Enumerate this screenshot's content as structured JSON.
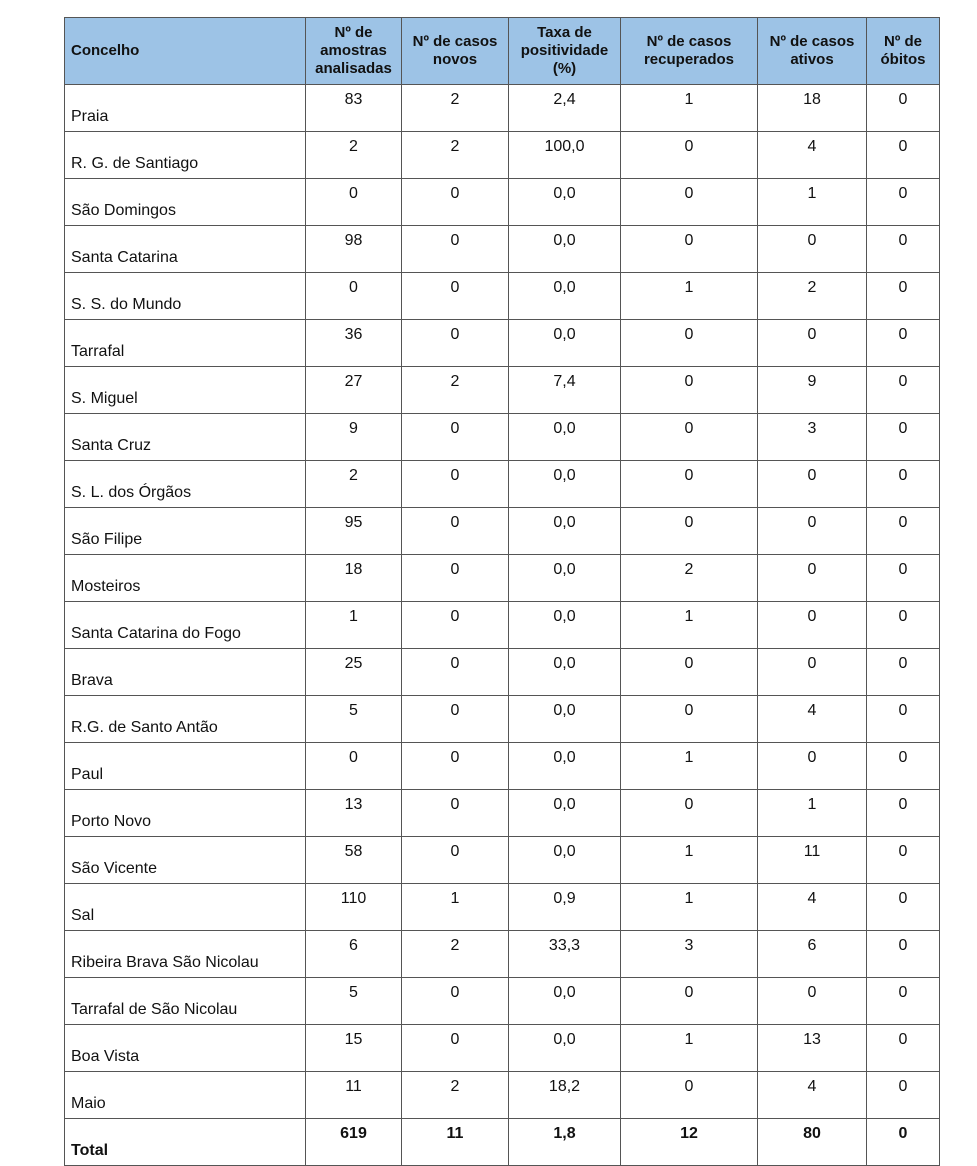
{
  "table": {
    "headers": [
      "Concelho",
      "Nº de amostras analisadas",
      "Nº de casos novos",
      "Taxa de positividade (%)",
      "Nº de casos recuperados",
      "Nº de casos ativos",
      "Nº de óbitos"
    ],
    "rows": [
      [
        "Praia",
        "83",
        "2",
        "2,4",
        "1",
        "18",
        "0"
      ],
      [
        "R. G. de Santiago",
        "2",
        "2",
        "100,0",
        "0",
        "4",
        "0"
      ],
      [
        "São Domingos",
        "0",
        "0",
        "0,0",
        "0",
        "1",
        "0"
      ],
      [
        "Santa Catarina",
        "98",
        "0",
        "0,0",
        "0",
        "0",
        "0"
      ],
      [
        "S. S. do Mundo",
        "0",
        "0",
        "0,0",
        "1",
        "2",
        "0"
      ],
      [
        "Tarrafal",
        "36",
        "0",
        "0,0",
        "0",
        "0",
        "0"
      ],
      [
        "S. Miguel",
        "27",
        "2",
        "7,4",
        "0",
        "9",
        "0"
      ],
      [
        "Santa Cruz",
        "9",
        "0",
        "0,0",
        "0",
        "3",
        "0"
      ],
      [
        "S. L. dos Órgãos",
        "2",
        "0",
        "0,0",
        "0",
        "0",
        "0"
      ],
      [
        "São Filipe",
        "95",
        "0",
        "0,0",
        "0",
        "0",
        "0"
      ],
      [
        "Mosteiros",
        "18",
        "0",
        "0,0",
        "2",
        "0",
        "0"
      ],
      [
        "Santa Catarina do Fogo",
        "1",
        "0",
        "0,0",
        "1",
        "0",
        "0"
      ],
      [
        "Brava",
        "25",
        "0",
        "0,0",
        "0",
        "0",
        "0"
      ],
      [
        "R.G. de Santo Antão",
        "5",
        "0",
        "0,0",
        "0",
        "4",
        "0"
      ],
      [
        "Paul",
        "0",
        "0",
        "0,0",
        "1",
        "0",
        "0"
      ],
      [
        "Porto Novo",
        "13",
        "0",
        "0,0",
        "0",
        "1",
        "0"
      ],
      [
        "São Vicente",
        "58",
        "0",
        "0,0",
        "1",
        "11",
        "0"
      ],
      [
        "Sal",
        "110",
        "1",
        "0,9",
        "1",
        "4",
        "0"
      ],
      [
        "Ribeira Brava São Nicolau",
        "6",
        "2",
        "33,3",
        "3",
        "6",
        "0"
      ],
      [
        "Tarrafal de São Nicolau",
        "5",
        "0",
        "0,0",
        "0",
        "0",
        "0"
      ],
      [
        "Boa Vista",
        "15",
        "0",
        "0,0",
        "1",
        "13",
        "0"
      ],
      [
        "Maio",
        "11",
        "2",
        "18,2",
        "0",
        "4",
        "0"
      ]
    ],
    "total": [
      "Total",
      "619",
      "11",
      "1,8",
      "12",
      "80",
      "0"
    ]
  },
  "colors": {
    "header_bg": "#9dc3e6"
  }
}
